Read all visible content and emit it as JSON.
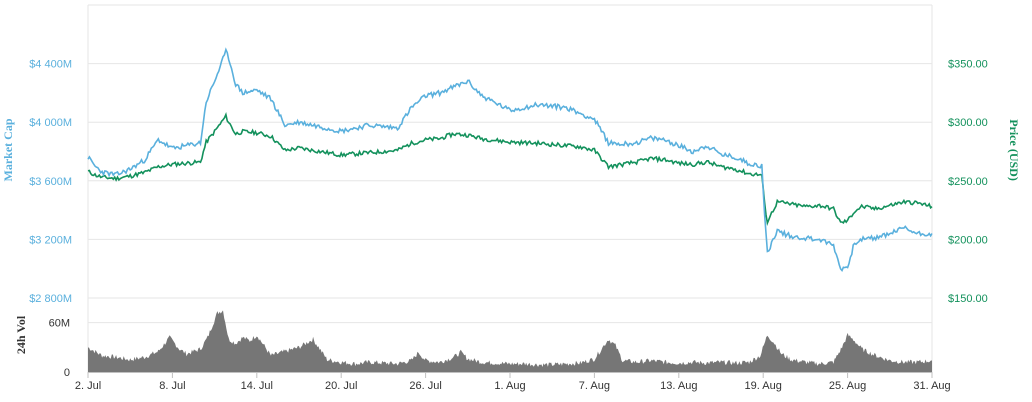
{
  "chart_data": {
    "type": "line",
    "grid": true,
    "legend": "none",
    "colors": {
      "market_cap": "#5ab0dd",
      "price": "#13915c",
      "volume": "#767676",
      "grid": "#e6e6e6"
    },
    "x_axis": {
      "ticks": [
        "2. Jul",
        "8. Jul",
        "14. Jul",
        "20. Jul",
        "26. Jul",
        "1. Aug",
        "7. Aug",
        "13. Aug",
        "19. Aug",
        "25. Aug",
        "31. Aug"
      ],
      "tick_days": [
        2,
        8,
        14,
        20,
        26,
        32,
        38,
        44,
        50,
        56,
        62
      ],
      "range": [
        2,
        62
      ]
    },
    "left_axis": {
      "label": "Market Cap",
      "ticks": [
        "$2 800M",
        "$3 200M",
        "$3 600M",
        "$4 000M",
        "$4 400M"
      ],
      "tick_values": [
        2800,
        3200,
        3600,
        4000,
        4400
      ],
      "range": [
        2800,
        4800
      ]
    },
    "right_axis": {
      "label": "Price (USD)",
      "ticks": [
        "$150.00",
        "$200.00",
        "$250.00",
        "$300.00",
        "$350.00"
      ],
      "tick_values": [
        150,
        200,
        250,
        300,
        350
      ],
      "range": [
        150,
        400
      ]
    },
    "volume_axis": {
      "label": "24h Vol",
      "ticks": [
        "0",
        "60M"
      ],
      "tick_values": [
        0,
        60
      ],
      "range": [
        0,
        90
      ]
    },
    "series": [
      {
        "name": "Market Cap",
        "axis": "left",
        "x": [
          2,
          2.5,
          3,
          4,
          5,
          6,
          7,
          8,
          9,
          10,
          10.4,
          11,
          11.8,
          12,
          12.5,
          13,
          14,
          15,
          16,
          17,
          18,
          20,
          22,
          24,
          25,
          26,
          27,
          28,
          29,
          30,
          32,
          34,
          36,
          37,
          38,
          39,
          40,
          41,
          42,
          43,
          44,
          45,
          46,
          47,
          48,
          49,
          49.9,
          50.1,
          50.3,
          51,
          52,
          53,
          54,
          55,
          55.5,
          56,
          56.5,
          57,
          58,
          59,
          60,
          61,
          62
        ],
        "values": [
          3760,
          3700,
          3660,
          3640,
          3680,
          3740,
          3880,
          3820,
          3840,
          3860,
          4140,
          4280,
          4480,
          4440,
          4260,
          4200,
          4220,
          4160,
          3980,
          4000,
          3980,
          3940,
          3980,
          3960,
          4100,
          4180,
          4200,
          4240,
          4280,
          4180,
          4080,
          4120,
          4100,
          4060,
          4020,
          3860,
          3850,
          3860,
          3890,
          3880,
          3840,
          3800,
          3840,
          3780,
          3760,
          3720,
          3700,
          3360,
          3110,
          3260,
          3220,
          3210,
          3200,
          3160,
          3000,
          3010,
          3180,
          3200,
          3210,
          3240,
          3280,
          3240,
          3240
        ]
      },
      {
        "name": "Price (USD)",
        "axis": "right",
        "x": [
          2,
          2.5,
          3,
          4,
          5,
          6,
          7,
          8,
          9,
          10,
          10.4,
          11,
          11.8,
          12,
          12.5,
          13,
          14,
          15,
          16,
          17,
          18,
          20,
          22,
          24,
          25,
          26,
          27,
          28,
          29,
          30,
          32,
          34,
          36,
          37,
          38,
          39,
          40,
          41,
          42,
          43,
          44,
          45,
          46,
          47,
          48,
          49,
          49.9,
          50.1,
          50.3,
          51,
          52,
          53,
          54,
          55,
          55.5,
          56,
          56.5,
          57,
          58,
          59,
          60,
          61,
          62
        ],
        "values": [
          258,
          255,
          253,
          252,
          254,
          257,
          262,
          264,
          265,
          266,
          283,
          292,
          305,
          300,
          290,
          292,
          291,
          288,
          276,
          278,
          276,
          272,
          274,
          276,
          282,
          285,
          286,
          290,
          289,
          286,
          283,
          282,
          280,
          279,
          276,
          262,
          264,
          266,
          269,
          268,
          265,
          264,
          266,
          262,
          260,
          256,
          255,
          230,
          215,
          232,
          230,
          228,
          229,
          226,
          214,
          216,
          224,
          228,
          226,
          229,
          232,
          231,
          228
        ]
      },
      {
        "name": "24h Vol",
        "axis": "volume",
        "x": [
          2,
          3,
          4,
          5,
          6,
          7,
          7.8,
          8.5,
          9,
          10,
          10.5,
          11.2,
          11.6,
          12,
          12.5,
          13,
          13.5,
          14,
          15,
          16,
          17,
          18,
          19,
          20,
          21,
          22,
          23,
          24,
          25,
          25.5,
          26,
          27,
          28,
          28.5,
          29,
          30,
          31,
          32,
          33,
          34,
          35,
          36,
          37,
          38,
          38.5,
          39,
          39.5,
          40,
          41,
          42,
          43,
          44,
          45,
          46,
          47,
          48,
          49,
          49.8,
          50.3,
          50.8,
          51.3,
          52,
          53,
          54,
          55,
          55.6,
          56,
          56.5,
          57,
          58,
          59,
          60,
          61,
          62
        ],
        "values": [
          30,
          20,
          18,
          15,
          18,
          25,
          42,
          28,
          22,
          28,
          42,
          72,
          75,
          40,
          35,
          42,
          38,
          45,
          20,
          25,
          30,
          40,
          15,
          12,
          10,
          12,
          11,
          10,
          14,
          24,
          14,
          12,
          18,
          24,
          16,
          12,
          11,
          10,
          10,
          9,
          9,
          10,
          11,
          16,
          28,
          40,
          32,
          14,
          12,
          14,
          12,
          11,
          12,
          11,
          12,
          11,
          12,
          20,
          45,
          35,
          22,
          15,
          12,
          10,
          12,
          30,
          45,
          38,
          28,
          20,
          14,
          12,
          12,
          14
        ]
      }
    ]
  }
}
